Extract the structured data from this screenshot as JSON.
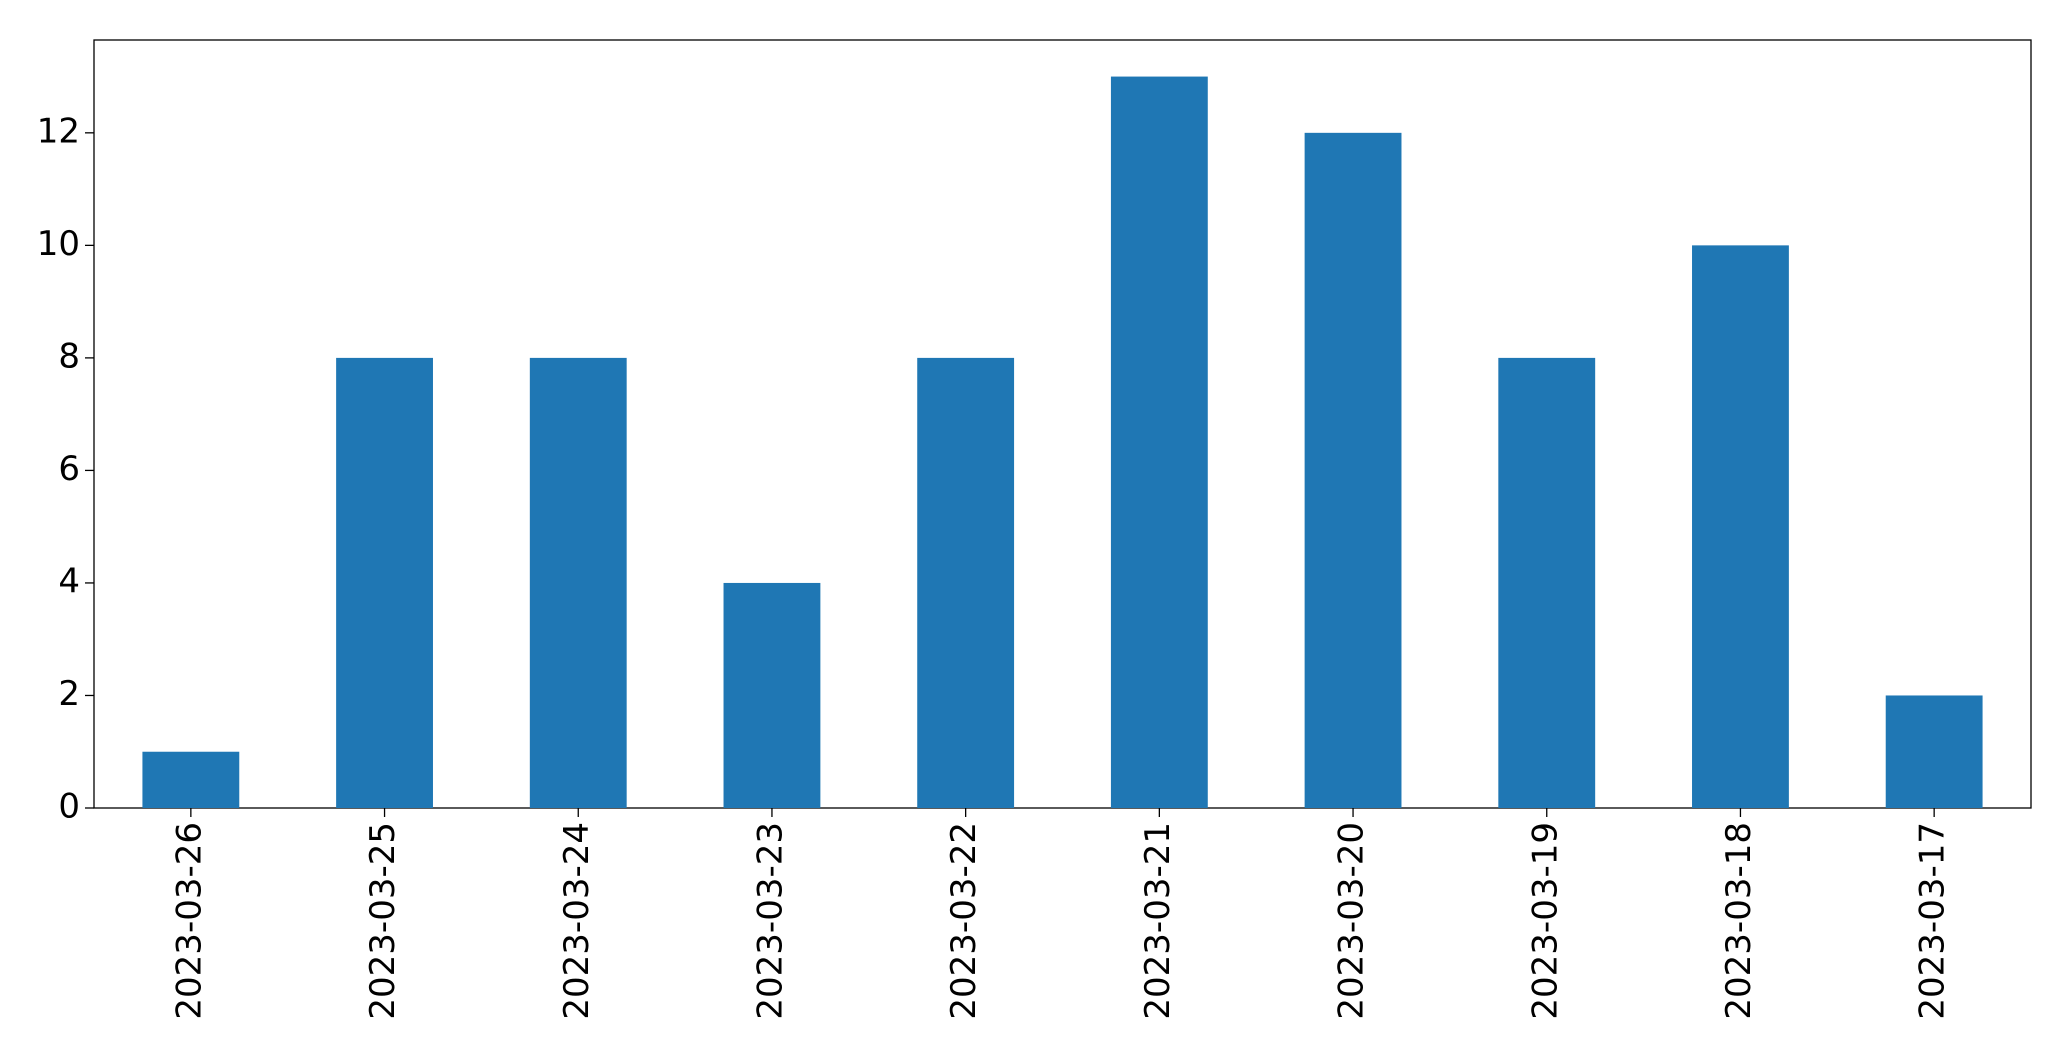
{
  "chart_data": {
    "type": "bar",
    "categories": [
      "2023-03-26",
      "2023-03-25",
      "2023-03-24",
      "2023-03-23",
      "2023-03-22",
      "2023-03-21",
      "2023-03-20",
      "2023-03-19",
      "2023-03-18",
      "2023-03-17"
    ],
    "values": [
      1,
      8,
      8,
      4,
      8,
      13,
      12,
      8,
      10,
      2
    ],
    "color": "#1f77b4",
    "ylim": [
      0,
      13.65
    ],
    "yticks": [
      0,
      2,
      4,
      6,
      8,
      10,
      12
    ],
    "grid": false
  }
}
